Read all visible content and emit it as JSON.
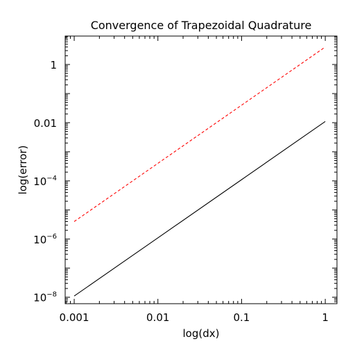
{
  "chart_data": {
    "type": "line",
    "title": "Convergence of Trapezoidal Quadrature",
    "xlabel": "log(dx)",
    "ylabel": "log(error)",
    "xscale": "log",
    "yscale": "log",
    "xlim": [
      0.00078,
      1.38
    ],
    "ylim": [
      6e-09,
      9.5
    ],
    "grid": false,
    "legend": "none",
    "x_ticks": [
      {
        "value": 0.001,
        "label": "0.001"
      },
      {
        "value": 0.01,
        "label": "0.01"
      },
      {
        "value": 0.1,
        "label": "0.1"
      },
      {
        "value": 1,
        "label": "1"
      }
    ],
    "y_ticks": [
      {
        "value": 1e-08,
        "base": "10",
        "exp": "−8"
      },
      {
        "value": 1e-06,
        "base": "10",
        "exp": "−6"
      },
      {
        "value": 0.0001,
        "base": "10",
        "exp": "−4"
      },
      {
        "value": 0.01,
        "base": "0.01",
        "exp": ""
      },
      {
        "value": 1,
        "base": "1",
        "exp": ""
      }
    ],
    "series": [
      {
        "style": "solid",
        "color": "#000000",
        "x": [
          0.001,
          0.01,
          0.1,
          1
        ],
        "y": [
          1.1e-08,
          1.1e-06,
          0.00011,
          0.011
        ]
      },
      {
        "style": "dashed",
        "color": "#ff0000",
        "x": [
          0.001,
          0.01,
          0.1,
          1
        ],
        "y": [
          4e-06,
          0.0004,
          0.04,
          4
        ]
      }
    ]
  }
}
